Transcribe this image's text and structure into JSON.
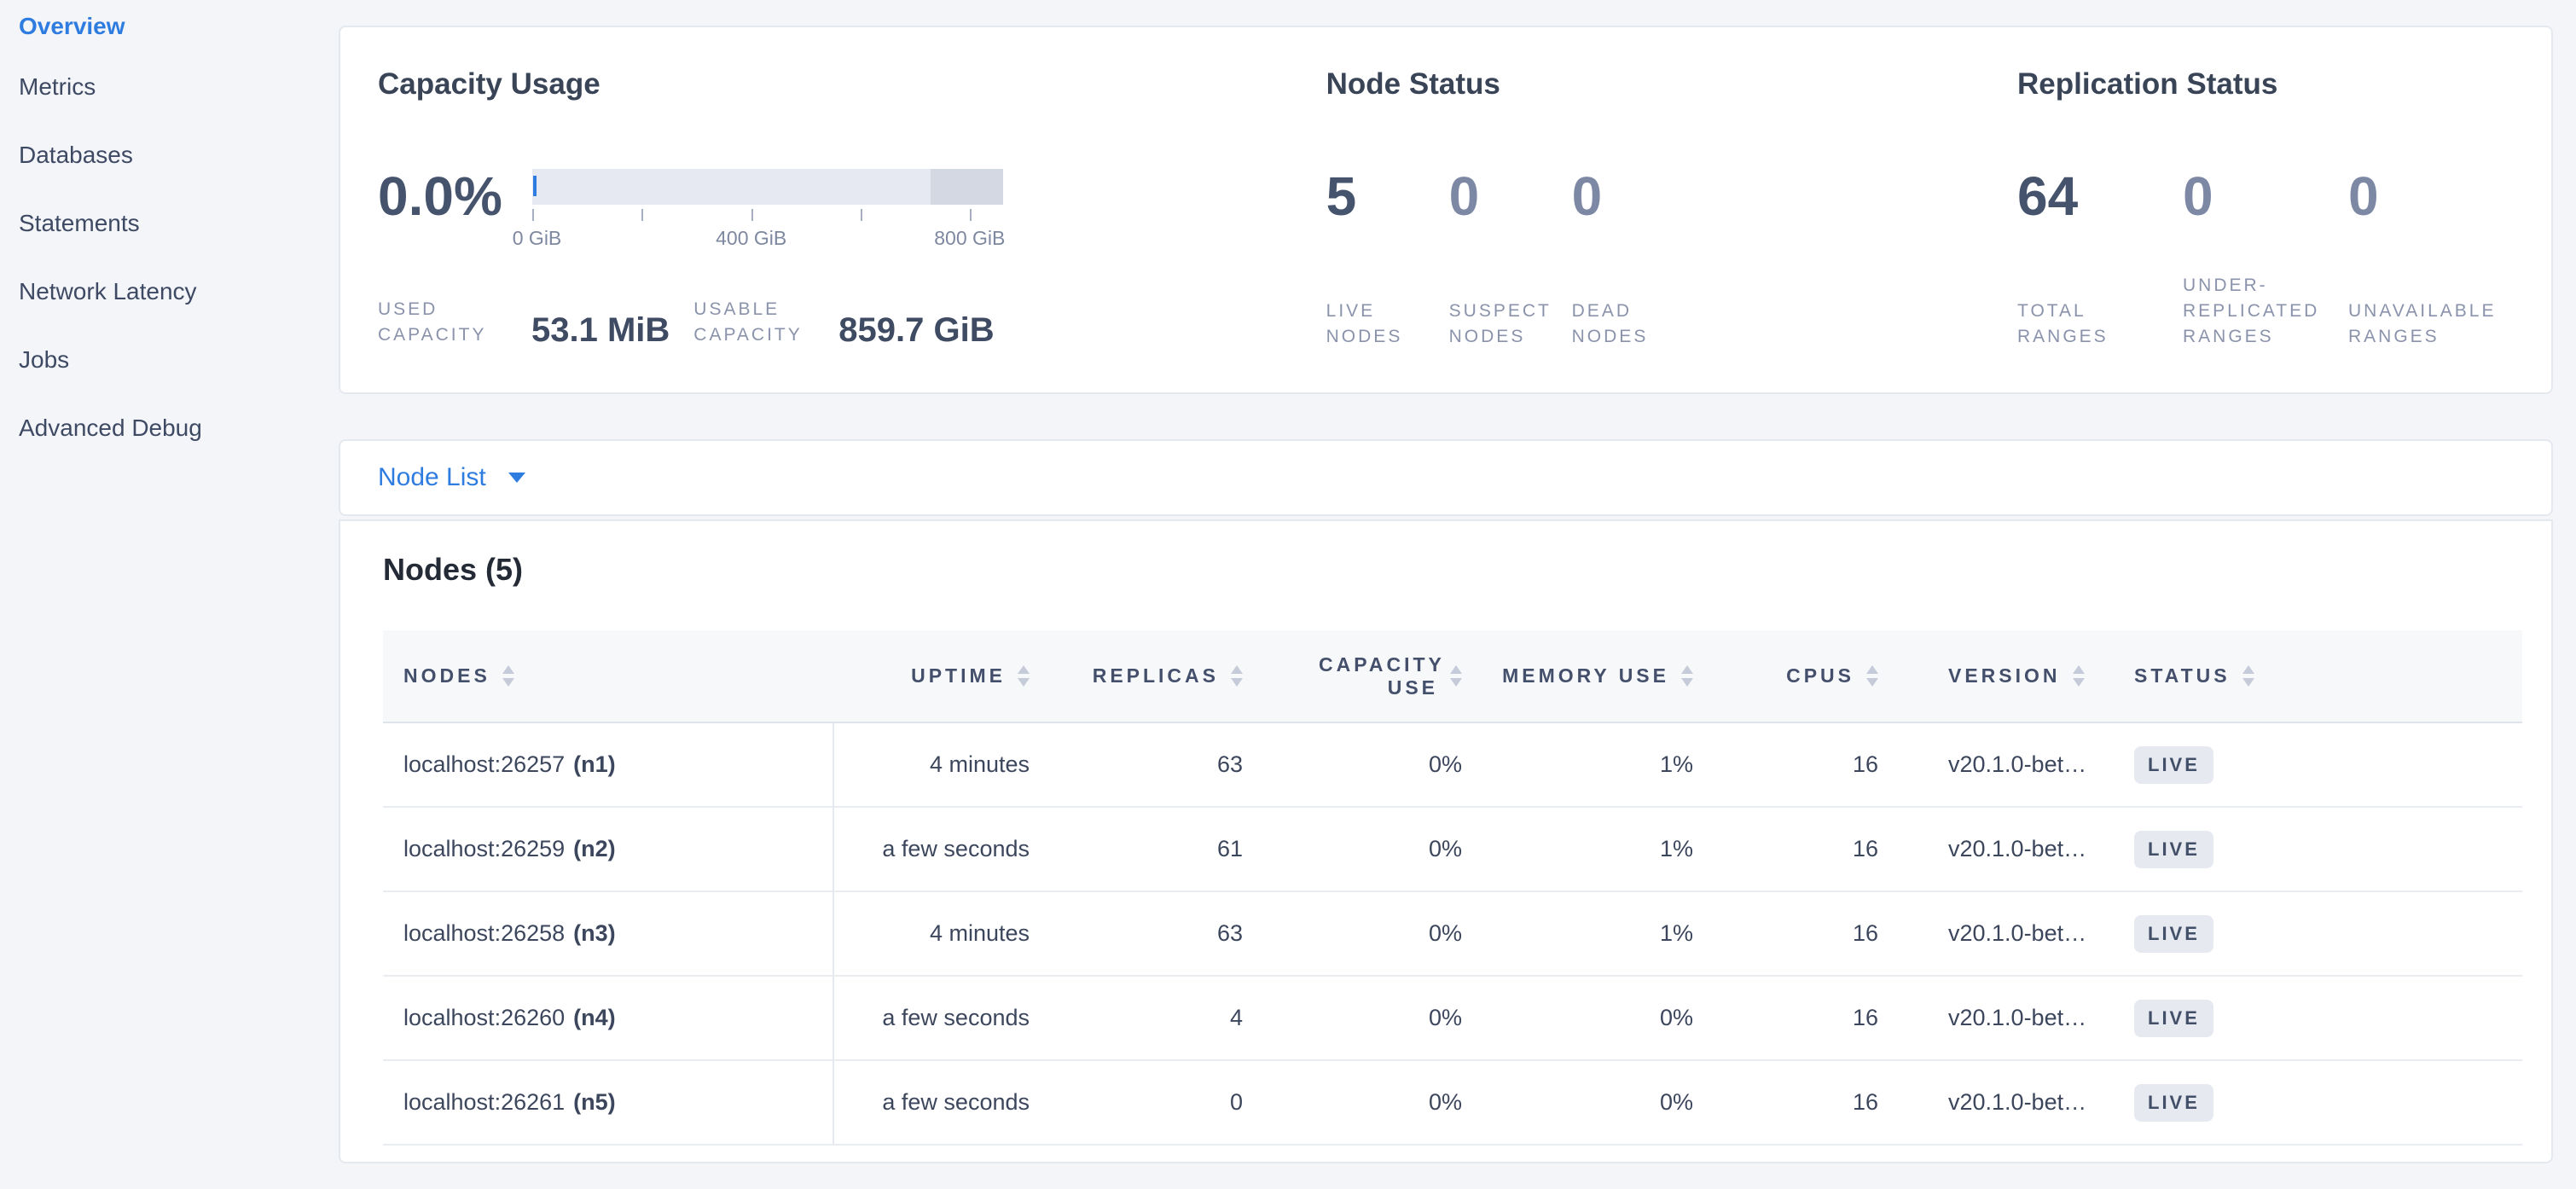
{
  "sidebar": {
    "items": [
      {
        "label": "Overview",
        "active": true
      },
      {
        "label": "Metrics",
        "active": false
      },
      {
        "label": "Databases",
        "active": false
      },
      {
        "label": "Statements",
        "active": false
      },
      {
        "label": "Network Latency",
        "active": false
      },
      {
        "label": "Jobs",
        "active": false
      },
      {
        "label": "Advanced Debug",
        "active": false
      }
    ]
  },
  "capacity": {
    "title": "Capacity Usage",
    "percent": "0.0%",
    "axis_ticks": [
      "0 GiB",
      "400 GiB",
      "800 GiB"
    ],
    "used_label": "Used Capacity",
    "used_value": "53.1 MiB",
    "usable_label": "Usable Capacity",
    "usable_value": "859.7 GiB"
  },
  "node_status": {
    "title": "Node Status",
    "stats": [
      {
        "value": "5",
        "label": "Live Nodes"
      },
      {
        "value": "0",
        "label": "Suspect Nodes"
      },
      {
        "value": "0",
        "label": "Dead Nodes"
      }
    ]
  },
  "replication": {
    "title": "Replication Status",
    "stats": [
      {
        "value": "64",
        "label": "Total Ranges"
      },
      {
        "value": "0",
        "label": "Under-replicated Ranges"
      },
      {
        "value": "0",
        "label": "Unavailable Ranges"
      }
    ]
  },
  "node_list": {
    "selector_label": "Node List"
  },
  "nodes_table": {
    "title": "Nodes (5)",
    "columns": [
      "Nodes",
      "Uptime",
      "Replicas",
      "Capacity Use",
      "Memory Use",
      "CPUs",
      "Version",
      "Status"
    ],
    "rows": [
      {
        "node": "localhost:26257",
        "id": "(n1)",
        "uptime": "4 minutes",
        "replicas": "63",
        "capacity_use": "0%",
        "memory_use": "1%",
        "cpus": "16",
        "version": "v20.1.0-bet…",
        "status": "LIVE"
      },
      {
        "node": "localhost:26259",
        "id": "(n2)",
        "uptime": "a few seconds",
        "replicas": "61",
        "capacity_use": "0%",
        "memory_use": "1%",
        "cpus": "16",
        "version": "v20.1.0-bet…",
        "status": "LIVE"
      },
      {
        "node": "localhost:26258",
        "id": "(n3)",
        "uptime": "4 minutes",
        "replicas": "63",
        "capacity_use": "0%",
        "memory_use": "1%",
        "cpus": "16",
        "version": "v20.1.0-bet…",
        "status": "LIVE"
      },
      {
        "node": "localhost:26260",
        "id": "(n4)",
        "uptime": "a few seconds",
        "replicas": "4",
        "capacity_use": "0%",
        "memory_use": "0%",
        "cpus": "16",
        "version": "v20.1.0-bet…",
        "status": "LIVE"
      },
      {
        "node": "localhost:26261",
        "id": "(n5)",
        "uptime": "a few seconds",
        "replicas": "0",
        "capacity_use": "0%",
        "memory_use": "0%",
        "cpus": "16",
        "version": "v20.1.0-bet…",
        "status": "LIVE"
      }
    ]
  },
  "icons": {
    "node_list_caret": "caret-down",
    "column_sort": "sort-arrows"
  },
  "colors": {
    "accent_blue": "#2f7ce0",
    "badge_bg": "#e6e9f0",
    "badge_text": "#424f68",
    "bar_track": "#e6e9f1",
    "bar_reserved": "#d4d8e3",
    "bar_used_marker": "#2f7ce0",
    "page_bg": "#f4f5f9"
  }
}
